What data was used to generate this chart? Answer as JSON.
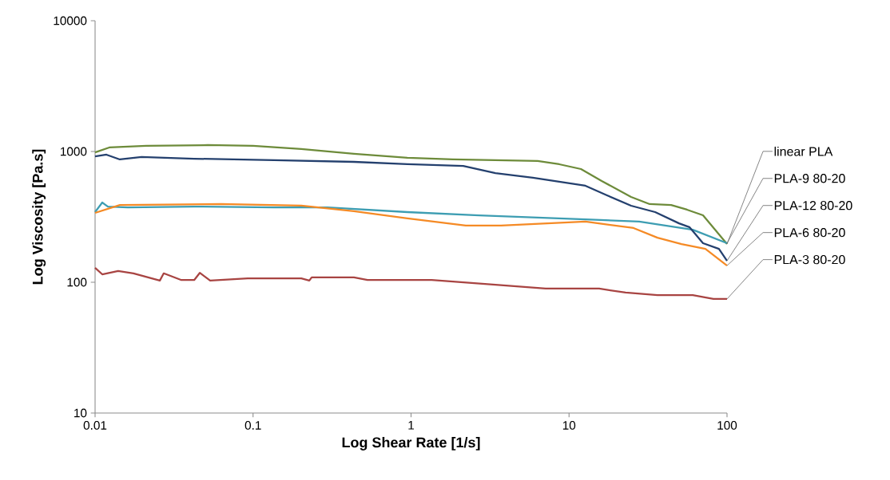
{
  "chart_data": {
    "type": "line",
    "xlabel": "Log Shear Rate [1/s]",
    "ylabel": "Log  Viscosity [Pa.s]",
    "log": "xy",
    "xlim": [
      0.01,
      100
    ],
    "ylim": [
      10,
      10000
    ],
    "xticks": [
      0.01,
      0.1,
      1,
      10,
      100
    ],
    "yticks": [
      10,
      100,
      1000,
      10000
    ],
    "series": [
      {
        "name": "linear PLA",
        "color": "#6d8b3a",
        "x": [
          0.01,
          0.0123,
          0.0211,
          0.0516,
          0.1,
          0.202,
          0.435,
          0.949,
          1.84,
          6.33,
          8.67,
          11.9,
          16.1,
          24.7,
          32.4,
          44.3,
          55.8,
          70.5,
          100
        ],
        "values": [
          985,
          1073,
          1104,
          1119,
          1104,
          1043,
          959,
          894,
          869,
          845,
          799,
          734,
          595,
          449,
          396,
          390,
          359,
          325,
          196
        ]
      },
      {
        "name": "PLA-9 80-20",
        "color": "#3d9db2",
        "x": [
          0.01,
          0.0111,
          0.01205,
          0.0161,
          0.0424,
          0.136,
          0.296,
          0.949,
          2.7,
          12.7,
          27.8,
          60.7,
          100
        ],
        "values": [
          344,
          407,
          379,
          374,
          379,
          374,
          374,
          344,
          325,
          303,
          291,
          252,
          199
        ]
      },
      {
        "name": "PLA-12 80-20",
        "color": "#24406e",
        "x": [
          0.01,
          0.0118,
          0.01435,
          0.0197,
          0.0424,
          0.136,
          0.435,
          0.949,
          2.14,
          3.42,
          5.9,
          12.7,
          17.4,
          24.7,
          35.1,
          49.7,
          57.8,
          70.5,
          88.9,
          100
        ],
        "values": [
          919,
          946,
          869,
          907,
          881,
          857,
          833,
          799,
          776,
          684,
          630,
          547,
          462,
          385,
          344,
          282,
          264,
          199,
          180,
          146
        ]
      },
      {
        "name": "PLA-6 80-20",
        "color": "#f58a25",
        "x": [
          0.01,
          0.01435,
          0.063,
          0.202,
          0.435,
          0.949,
          2.22,
          3.71,
          12.7,
          25.6,
          36.3,
          51.5,
          73.0,
          100
        ],
        "values": [
          339,
          390,
          396,
          385,
          349,
          308,
          271,
          271,
          291,
          260,
          219,
          196,
          180,
          134
        ]
      },
      {
        "name": "PLA-3 80-20",
        "color": "#a84442",
        "x": [
          0.01,
          0.0111,
          0.014,
          0.0175,
          0.0257,
          0.0272,
          0.0352,
          0.0424,
          0.046,
          0.0535,
          0.0925,
          0.202,
          0.227,
          0.235,
          0.435,
          0.53,
          0.949,
          1.35,
          3.3,
          7.11,
          15.5,
          22.8,
          36.3,
          60.7,
          82.0,
          100
        ],
        "values": [
          129,
          115,
          122,
          117,
          103,
          117,
          104,
          104,
          118,
          103,
          107,
          107,
          103,
          109,
          109,
          104,
          104,
          104,
          95.9,
          89.4,
          89.4,
          83.4,
          79.8,
          79.8,
          74.5,
          74.5
        ]
      }
    ]
  }
}
